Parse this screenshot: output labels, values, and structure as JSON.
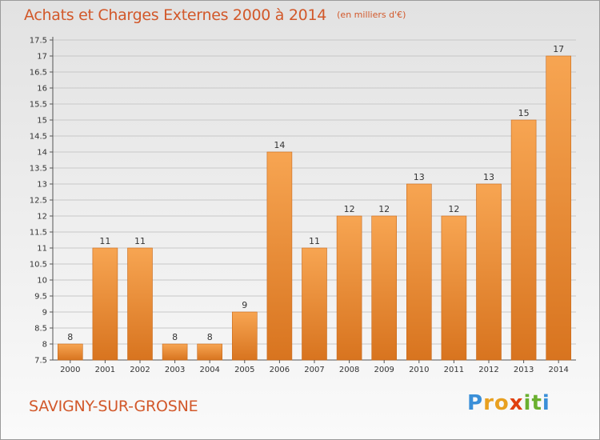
{
  "title": "Achats et Charges Externes 2000 à 2014",
  "subtitle": "(en milliers d'€)",
  "commune": "SAVIGNY-SUR-GROSNE",
  "logo": {
    "text": "Proxiti",
    "letters": [
      {
        "ch": "P",
        "color": "#3a8fd8"
      },
      {
        "ch": "r",
        "color": "#e8a020"
      },
      {
        "ch": "o",
        "color": "#e8a020"
      },
      {
        "ch": "x",
        "color": "#e04010"
      },
      {
        "ch": "i",
        "color": "#6ab030"
      },
      {
        "ch": "t",
        "color": "#6ab030"
      },
      {
        "ch": "i",
        "color": "#3a8fd8"
      }
    ]
  },
  "colors": {
    "bar_light": "#f7a552",
    "bar_dark": "#d8741f",
    "accent": "#d2582a"
  },
  "chart_data": {
    "type": "bar",
    "title": "Achats et Charges Externes 2000 à 2014",
    "subtitle": "(en milliers d'€)",
    "xlabel": "",
    "ylabel": "",
    "categories": [
      "2000",
      "2001",
      "2002",
      "2003",
      "2004",
      "2005",
      "2006",
      "2007",
      "2008",
      "2009",
      "2010",
      "2011",
      "2012",
      "2013",
      "2014"
    ],
    "values": [
      8,
      11,
      11,
      8,
      8,
      9,
      14,
      11,
      12,
      12,
      13,
      12,
      13,
      15,
      17
    ],
    "ylim": [
      7.5,
      17.5
    ],
    "yticks": [
      "7.5",
      "8",
      "8.5",
      "9",
      "9.5",
      "10",
      "10.5",
      "11",
      "11.5",
      "12",
      "12.5",
      "13",
      "13.5",
      "14",
      "14.5",
      "15",
      "15.5",
      "16",
      "16.5",
      "17",
      "17.5"
    ],
    "grid": true
  }
}
